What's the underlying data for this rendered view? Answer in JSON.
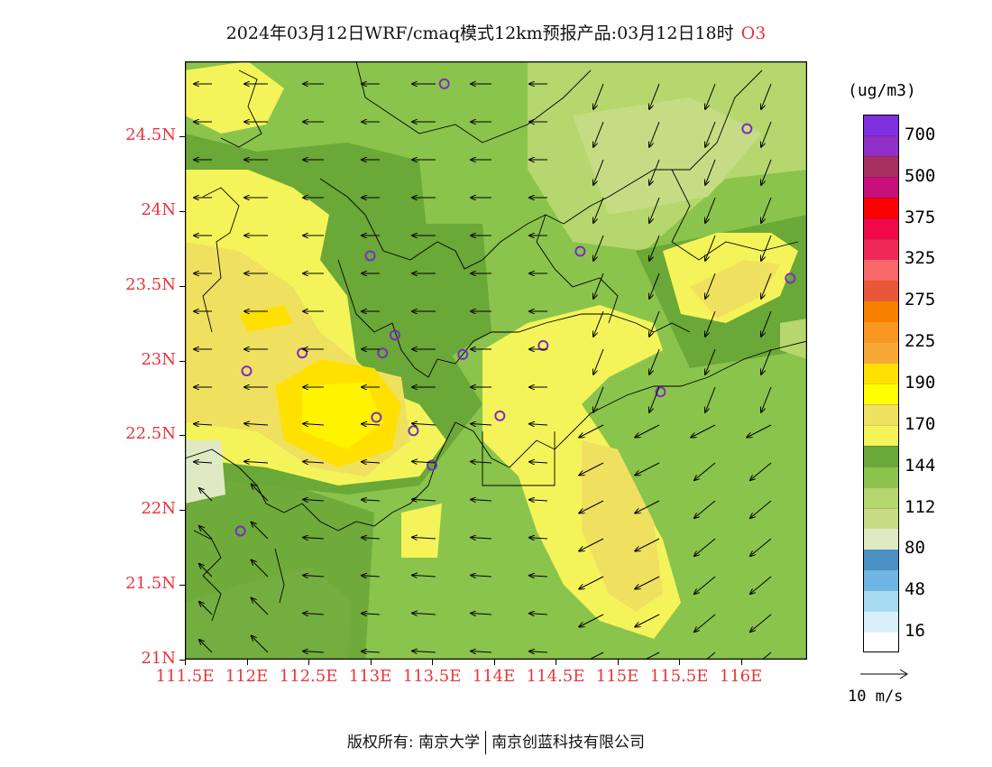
{
  "title": {
    "main": "2024年03月12日WRF/cmaq模式12km预报产品:03月12日18时",
    "species": "O3"
  },
  "colors": {
    "axis_label": "#e8343a",
    "station_circle": "#7b2cc4",
    "frame": "#000000"
  },
  "map": {
    "lat_range": [
      21,
      25
    ],
    "lon_range": [
      111.5,
      116.5
    ],
    "y_ticks": [
      {
        "value": 24.5,
        "label": "24.5N"
      },
      {
        "value": 24,
        "label": "24N"
      },
      {
        "value": 23.5,
        "label": "23.5N"
      },
      {
        "value": 23,
        "label": "23N"
      },
      {
        "value": 22.5,
        "label": "22.5N"
      },
      {
        "value": 22,
        "label": "22N"
      },
      {
        "value": 21.5,
        "label": "21.5N"
      },
      {
        "value": 21,
        "label": "21N"
      }
    ],
    "x_ticks": [
      {
        "value": 111.5,
        "label": "111.5E"
      },
      {
        "value": 112,
        "label": "112E"
      },
      {
        "value": 112.5,
        "label": "112.5E"
      },
      {
        "value": 113,
        "label": "113E"
      },
      {
        "value": 113.5,
        "label": "113.5E"
      },
      {
        "value": 114,
        "label": "114E"
      },
      {
        "value": 114.5,
        "label": "114.5E"
      },
      {
        "value": 115,
        "label": "115E"
      },
      {
        "value": 115.5,
        "label": "115.5E"
      },
      {
        "value": 116,
        "label": "116E"
      }
    ],
    "stations": [
      {
        "lon": 113.6,
        "lat": 24.85
      },
      {
        "lon": 116.05,
        "lat": 24.55
      },
      {
        "lon": 113.0,
        "lat": 23.7
      },
      {
        "lon": 114.7,
        "lat": 23.73
      },
      {
        "lon": 116.4,
        "lat": 23.55
      },
      {
        "lon": 113.2,
        "lat": 23.17
      },
      {
        "lon": 113.1,
        "lat": 23.05
      },
      {
        "lon": 112.45,
        "lat": 23.05
      },
      {
        "lon": 112.0,
        "lat": 22.93
      },
      {
        "lon": 113.75,
        "lat": 23.04
      },
      {
        "lon": 114.4,
        "lat": 23.1
      },
      {
        "lon": 115.35,
        "lat": 22.79
      },
      {
        "lon": 113.05,
        "lat": 22.62
      },
      {
        "lon": 113.35,
        "lat": 22.53
      },
      {
        "lon": 114.05,
        "lat": 22.63
      },
      {
        "lon": 113.5,
        "lat": 22.3
      },
      {
        "lon": 111.95,
        "lat": 21.86
      }
    ]
  },
  "colorbar": {
    "unit": "(ug/m3)",
    "bins": [
      {
        "color": "#ffffff"
      },
      {
        "color": "#d9eef9"
      },
      {
        "color": "#a8dbf2"
      },
      {
        "color": "#6fb6e2"
      },
      {
        "color": "#4a90c4"
      },
      {
        "color": "#dfeac4"
      },
      {
        "color": "#c6dc84"
      },
      {
        "color": "#b6d66e"
      },
      {
        "color": "#8ac44c"
      },
      {
        "color": "#6aa838"
      },
      {
        "color": "#f4f45a"
      },
      {
        "color": "#f0e060"
      },
      {
        "color": "#ffff00"
      },
      {
        "color": "#ffe000"
      },
      {
        "color": "#f8a838"
      },
      {
        "color": "#f89820"
      },
      {
        "color": "#f88000"
      },
      {
        "color": "#e85838"
      },
      {
        "color": "#f86868"
      },
      {
        "color": "#f02858"
      },
      {
        "color": "#f00848"
      },
      {
        "color": "#ff0000"
      },
      {
        "color": "#c8107c"
      },
      {
        "color": "#a83060"
      },
      {
        "color": "#9030c8"
      },
      {
        "color": "#8030e0"
      }
    ],
    "labels": [
      "16",
      "48",
      "80",
      "112",
      "144",
      "170",
      "190",
      "225",
      "275",
      "325",
      "375",
      "500",
      "700"
    ]
  },
  "reference_vector": {
    "label": "10 m/s"
  },
  "footer": {
    "left": "版权所有: 南京大学",
    "right": "南京创蓝科技有限公司"
  }
}
